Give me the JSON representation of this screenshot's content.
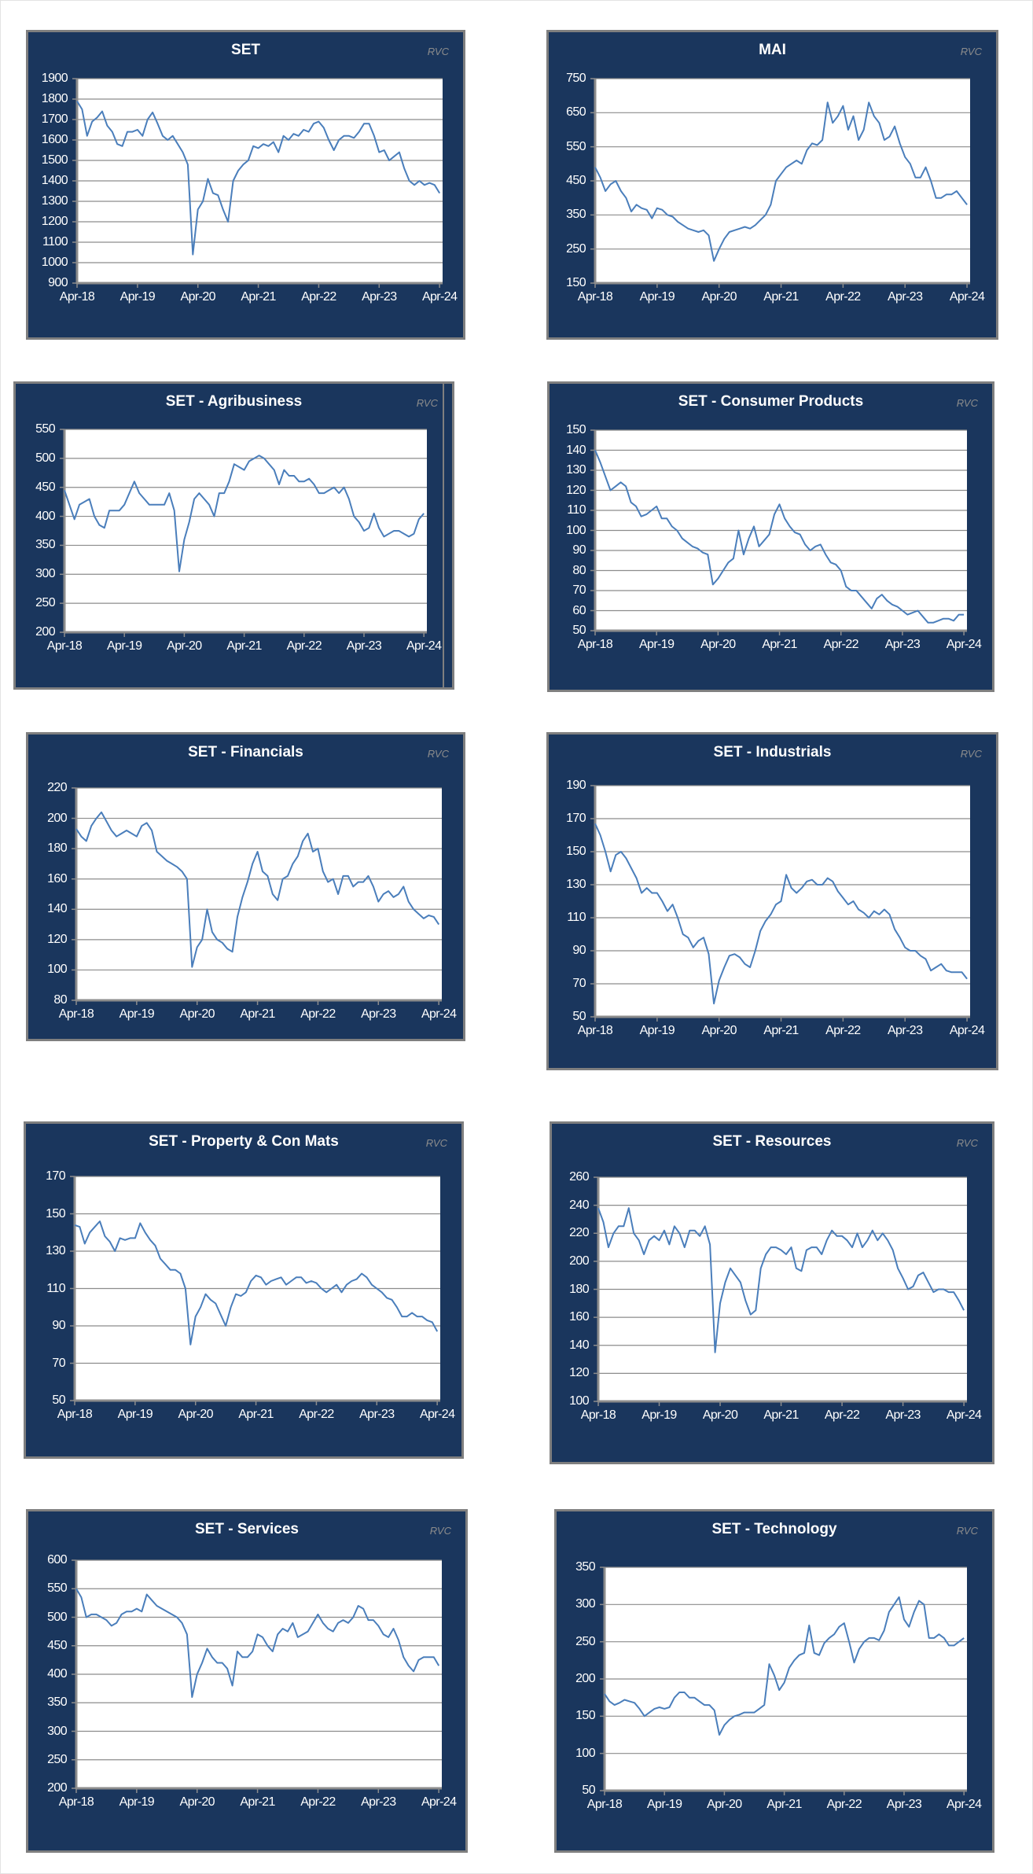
{
  "chart_data": [
    {
      "type": "line",
      "title": "SET",
      "watermark": "RVC",
      "x_start": "Apr-18",
      "x_frequency": "monthly",
      "xlim_months": [
        0,
        72.6
      ],
      "x_ticks": [
        "Apr-18",
        "Apr-19",
        "Apr-20",
        "Apr-21",
        "Apr-22",
        "Apr-23",
        "Apr-24"
      ],
      "ylim": [
        900,
        1900
      ],
      "y_ticks": [
        "900",
        "1000",
        "1100",
        "1200",
        "1300",
        "1400",
        "1500",
        "1600",
        "1700",
        "1800",
        "1900"
      ],
      "y_step": 100,
      "series": [
        {
          "name": "SET",
          "color": "#4a7ebb",
          "values": [
            1790,
            1750,
            1620,
            1690,
            1710,
            1740,
            1670,
            1640,
            1580,
            1570,
            1640,
            1640,
            1650,
            1620,
            1700,
            1735,
            1680,
            1620,
            1600,
            1620,
            1580,
            1540,
            1480,
            1040,
            1260,
            1300,
            1410,
            1340,
            1330,
            1260,
            1200,
            1400,
            1450,
            1480,
            1500,
            1570,
            1560,
            1580,
            1570,
            1590,
            1540,
            1620,
            1600,
            1630,
            1620,
            1650,
            1640,
            1680,
            1690,
            1660,
            1600,
            1550,
            1600,
            1620,
            1620,
            1610,
            1640,
            1680,
            1680,
            1620,
            1540,
            1550,
            1500,
            1520,
            1540,
            1460,
            1400,
            1380,
            1400,
            1380,
            1390,
            1380,
            1340
          ]
        }
      ]
    },
    {
      "type": "line",
      "title": "MAI",
      "watermark": "RVC",
      "x_start": "Apr-18",
      "x_frequency": "monthly",
      "xlim_months": [
        0,
        72.6
      ],
      "x_ticks": [
        "Apr-18",
        "Apr-19",
        "Apr-20",
        "Apr-21",
        "Apr-22",
        "Apr-23",
        "Apr-24"
      ],
      "ylim": [
        150,
        750
      ],
      "y_ticks": [
        "150",
        "250",
        "350",
        "450",
        "550",
        "650",
        "750"
      ],
      "y_step": 100,
      "series": [
        {
          "name": "MAI",
          "color": "#4a7ebb",
          "values": [
            490,
            460,
            420,
            440,
            450,
            420,
            400,
            360,
            380,
            370,
            365,
            340,
            370,
            365,
            350,
            345,
            330,
            320,
            310,
            305,
            300,
            305,
            290,
            215,
            250,
            280,
            300,
            305,
            310,
            315,
            310,
            320,
            335,
            350,
            380,
            450,
            470,
            490,
            500,
            510,
            500,
            540,
            560,
            555,
            570,
            680,
            620,
            640,
            670,
            600,
            640,
            570,
            600,
            680,
            640,
            620,
            570,
            580,
            610,
            560,
            520,
            500,
            460,
            460,
            490,
            450,
            400,
            400,
            410,
            410,
            420,
            400,
            380
          ]
        }
      ]
    },
    {
      "type": "line",
      "title": "SET - Agribusiness",
      "watermark": "RVC",
      "x_start": "Apr-18",
      "x_frequency": "monthly",
      "xlim_months": [
        0,
        72.6
      ],
      "x_ticks": [
        "Apr-18",
        "Apr-19",
        "Apr-20",
        "Apr-21",
        "Apr-22",
        "Apr-23",
        "Apr-24"
      ],
      "ylim": [
        200,
        550
      ],
      "y_ticks": [
        "200",
        "250",
        "300",
        "350",
        "400",
        "450",
        "500",
        "550"
      ],
      "y_step": 50,
      "series": [
        {
          "name": "SET - Agribusiness",
          "color": "#4a7ebb",
          "values": [
            445,
            420,
            395,
            420,
            425,
            430,
            400,
            385,
            380,
            410,
            410,
            410,
            420,
            440,
            460,
            440,
            430,
            420,
            420,
            420,
            420,
            440,
            410,
            305,
            360,
            390,
            430,
            440,
            430,
            420,
            400,
            440,
            440,
            460,
            490,
            485,
            480,
            495,
            500,
            505,
            500,
            490,
            480,
            455,
            480,
            470,
            470,
            460,
            460,
            465,
            455,
            440,
            440,
            445,
            450,
            440,
            450,
            430,
            400,
            390,
            375,
            380,
            405,
            380,
            365,
            370,
            375,
            375,
            370,
            365,
            370,
            395,
            405
          ]
        }
      ]
    },
    {
      "type": "line",
      "title": "SET - Consumer Products",
      "watermark": "RVC",
      "x_start": "Apr-18",
      "x_frequency": "monthly",
      "xlim_months": [
        0,
        72.6
      ],
      "x_ticks": [
        "Apr-18",
        "Apr-19",
        "Apr-20",
        "Apr-21",
        "Apr-22",
        "Apr-23",
        "Apr-24"
      ],
      "ylim": [
        50,
        150
      ],
      "y_ticks": [
        "50",
        "60",
        "70",
        "80",
        "90",
        "100",
        "110",
        "120",
        "130",
        "140",
        "150"
      ],
      "y_step": 10,
      "series": [
        {
          "name": "SET - Consumer Products",
          "color": "#4a7ebb",
          "values": [
            140,
            134,
            127,
            120,
            122,
            124,
            122,
            114,
            112,
            107,
            108,
            110,
            112,
            106,
            106,
            102,
            100,
            96,
            94,
            92,
            91,
            89,
            88,
            73,
            76,
            80,
            84,
            86,
            100,
            88,
            96,
            102,
            92,
            95,
            98,
            108,
            113,
            106,
            102,
            99,
            98,
            93,
            90,
            92,
            93,
            88,
            84,
            83,
            80,
            72,
            70,
            70,
            67,
            64,
            61,
            66,
            68,
            65,
            63,
            62,
            60,
            58,
            59,
            60,
            57,
            54,
            54,
            55,
            56,
            56,
            55,
            58,
            58
          ]
        }
      ]
    },
    {
      "type": "line",
      "title": "SET - Financials",
      "watermark": "RVC",
      "x_start": "Apr-18",
      "x_frequency": "monthly",
      "xlim_months": [
        0,
        72.6
      ],
      "x_ticks": [
        "Apr-18",
        "Apr-19",
        "Apr-20",
        "Apr-21",
        "Apr-22",
        "Apr-23",
        "Apr-24"
      ],
      "ylim": [
        80,
        220
      ],
      "y_ticks": [
        "80",
        "100",
        "120",
        "140",
        "160",
        "180",
        "200",
        "220"
      ],
      "y_step": 20,
      "series": [
        {
          "name": "SET - Financials",
          "color": "#4a7ebb",
          "values": [
            193,
            188,
            185,
            195,
            200,
            204,
            198,
            192,
            188,
            190,
            192,
            190,
            188,
            195,
            197,
            192,
            178,
            175,
            172,
            170,
            168,
            165,
            160,
            102,
            115,
            120,
            140,
            125,
            120,
            118,
            114,
            112,
            135,
            148,
            158,
            170,
            178,
            165,
            162,
            150,
            146,
            160,
            162,
            170,
            175,
            185,
            190,
            178,
            180,
            165,
            158,
            160,
            150,
            162,
            162,
            155,
            158,
            158,
            162,
            155,
            145,
            150,
            152,
            148,
            150,
            155,
            145,
            140,
            137,
            134,
            136,
            135,
            130
          ]
        }
      ]
    },
    {
      "type": "line",
      "title": "SET - Industrials",
      "watermark": "RVC",
      "x_start": "Apr-18",
      "x_frequency": "monthly",
      "xlim_months": [
        0,
        72.6
      ],
      "x_ticks": [
        "Apr-18",
        "Apr-19",
        "Apr-20",
        "Apr-21",
        "Apr-22",
        "Apr-23",
        "Apr-24"
      ],
      "ylim": [
        50,
        190
      ],
      "y_ticks": [
        "50",
        "70",
        "90",
        "110",
        "130",
        "150",
        "170",
        "190"
      ],
      "y_step": 20,
      "series": [
        {
          "name": "SET - Industrials",
          "color": "#4a7ebb",
          "values": [
            167,
            160,
            150,
            138,
            148,
            150,
            146,
            140,
            134,
            125,
            128,
            125,
            125,
            120,
            114,
            118,
            110,
            100,
            98,
            92,
            96,
            98,
            88,
            58,
            72,
            80,
            87,
            88,
            86,
            82,
            80,
            90,
            102,
            108,
            112,
            118,
            120,
            136,
            128,
            125,
            128,
            132,
            133,
            130,
            130,
            134,
            132,
            126,
            122,
            118,
            120,
            115,
            113,
            110,
            114,
            112,
            115,
            112,
            103,
            98,
            92,
            90,
            90,
            87,
            85,
            78,
            80,
            82,
            78,
            77,
            77,
            77,
            73
          ]
        }
      ]
    },
    {
      "type": "line",
      "title": "SET - Property & Con Mats",
      "watermark": "RVC",
      "x_start": "Apr-18",
      "x_frequency": "monthly",
      "xlim_months": [
        0,
        72.6
      ],
      "x_ticks": [
        "Apr-18",
        "Apr-19",
        "Apr-20",
        "Apr-21",
        "Apr-22",
        "Apr-23",
        "Apr-24"
      ],
      "ylim": [
        50,
        170
      ],
      "y_ticks": [
        "50",
        "70",
        "90",
        "110",
        "130",
        "150",
        "170"
      ],
      "y_step": 20,
      "series": [
        {
          "name": "SET - Property & Con Mats",
          "color": "#4a7ebb",
          "values": [
            144,
            143,
            134,
            140,
            143,
            146,
            138,
            135,
            130,
            137,
            136,
            137,
            137,
            145,
            140,
            136,
            133,
            126,
            123,
            120,
            120,
            118,
            110,
            80,
            95,
            100,
            107,
            104,
            102,
            96,
            90,
            100,
            107,
            106,
            108,
            114,
            117,
            116,
            112,
            114,
            115,
            116,
            112,
            114,
            116,
            116,
            113,
            114,
            113,
            110,
            108,
            110,
            112,
            108,
            112,
            114,
            115,
            118,
            116,
            112,
            110,
            108,
            105,
            104,
            100,
            95,
            95,
            97,
            95,
            95,
            93,
            92,
            87
          ]
        }
      ]
    },
    {
      "type": "line",
      "title": "SET - Resources",
      "watermark": "RVC",
      "x_start": "Apr-18",
      "x_frequency": "monthly",
      "xlim_months": [
        0,
        72.6
      ],
      "x_ticks": [
        "Apr-18",
        "Apr-19",
        "Apr-20",
        "Apr-21",
        "Apr-22",
        "Apr-23",
        "Apr-24"
      ],
      "ylim": [
        100,
        260
      ],
      "y_ticks": [
        "100",
        "120",
        "140",
        "160",
        "180",
        "200",
        "220",
        "240",
        "260"
      ],
      "y_step": 20,
      "series": [
        {
          "name": "SET - Resources",
          "color": "#4a7ebb",
          "values": [
            238,
            228,
            210,
            220,
            225,
            225,
            238,
            220,
            215,
            205,
            215,
            218,
            215,
            222,
            212,
            225,
            220,
            210,
            222,
            222,
            218,
            225,
            212,
            135,
            170,
            185,
            195,
            190,
            185,
            172,
            162,
            165,
            195,
            205,
            210,
            210,
            208,
            205,
            210,
            195,
            193,
            208,
            210,
            210,
            205,
            215,
            222,
            218,
            218,
            215,
            210,
            220,
            210,
            215,
            222,
            215,
            220,
            215,
            208,
            195,
            188,
            180,
            182,
            190,
            192,
            185,
            178,
            180,
            180,
            178,
            178,
            172,
            165
          ]
        }
      ]
    },
    {
      "type": "line",
      "title": "SET - Services",
      "watermark": "RVC",
      "x_start": "Apr-18",
      "x_frequency": "monthly",
      "xlim_months": [
        0,
        72.6
      ],
      "x_ticks": [
        "Apr-18",
        "Apr-19",
        "Apr-20",
        "Apr-21",
        "Apr-22",
        "Apr-23",
        "Apr-24"
      ],
      "ylim": [
        200,
        600
      ],
      "y_ticks": [
        "200",
        "250",
        "300",
        "350",
        "400",
        "450",
        "500",
        "550",
        "600"
      ],
      "y_step": 50,
      "series": [
        {
          "name": "SET - Services",
          "color": "#4a7ebb",
          "values": [
            550,
            535,
            500,
            505,
            505,
            500,
            495,
            485,
            490,
            505,
            510,
            510,
            515,
            510,
            540,
            530,
            520,
            515,
            510,
            505,
            500,
            490,
            470,
            360,
            400,
            420,
            445,
            430,
            420,
            420,
            410,
            380,
            440,
            430,
            430,
            440,
            470,
            465,
            450,
            440,
            470,
            480,
            475,
            490,
            465,
            470,
            475,
            490,
            505,
            490,
            480,
            475,
            490,
            495,
            490,
            500,
            520,
            515,
            495,
            495,
            485,
            470,
            465,
            480,
            460,
            430,
            415,
            405,
            425,
            430,
            430,
            430,
            415
          ]
        }
      ]
    },
    {
      "type": "line",
      "title": "SET - Technology",
      "watermark": "RVC",
      "x_start": "Apr-18",
      "x_frequency": "monthly",
      "xlim_months": [
        0,
        72.6
      ],
      "x_ticks": [
        "Apr-18",
        "Apr-19",
        "Apr-20",
        "Apr-21",
        "Apr-22",
        "Apr-23",
        "Apr-24"
      ],
      "ylim": [
        50,
        350
      ],
      "y_ticks": [
        "50",
        "100",
        "150",
        "200",
        "250",
        "300",
        "350"
      ],
      "y_step": 50,
      "series": [
        {
          "name": "SET - Technology",
          "color": "#4a7ebb",
          "values": [
            180,
            170,
            165,
            168,
            172,
            170,
            168,
            160,
            150,
            155,
            160,
            162,
            160,
            162,
            175,
            182,
            182,
            175,
            175,
            170,
            165,
            165,
            158,
            125,
            138,
            145,
            150,
            152,
            155,
            155,
            155,
            160,
            165,
            220,
            205,
            185,
            195,
            215,
            225,
            232,
            235,
            272,
            235,
            232,
            248,
            255,
            260,
            270,
            275,
            250,
            222,
            240,
            250,
            255,
            255,
            252,
            265,
            290,
            300,
            310,
            280,
            270,
            290,
            305,
            300,
            255,
            255,
            260,
            255,
            245,
            245,
            250,
            255
          ]
        }
      ]
    }
  ]
}
